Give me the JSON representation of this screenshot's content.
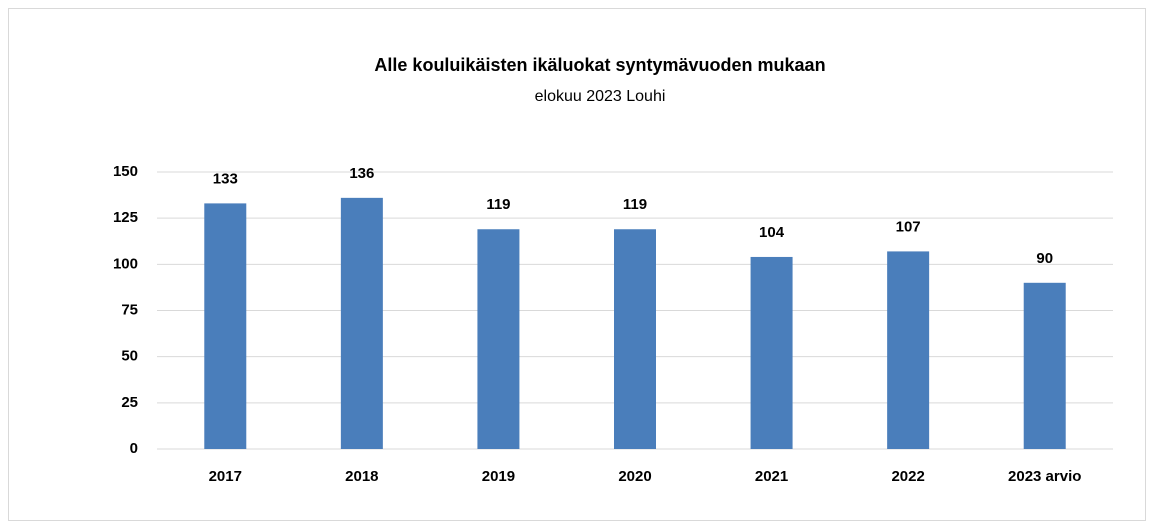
{
  "chart_data": {
    "type": "bar",
    "title": "Alle kouluikäisten ikäluokat syntymävuoden mukaan",
    "subtitle": "elokuu 2023 Louhi",
    "categories": [
      "2017",
      "2018",
      "2019",
      "2020",
      "2021",
      "2022",
      "2023 arvio"
    ],
    "values": [
      133,
      136,
      119,
      119,
      104,
      107,
      90
    ],
    "color": "#4a7ebb",
    "ylim": [
      0,
      150
    ],
    "yticks": [
      0,
      25,
      50,
      75,
      100,
      125,
      150
    ],
    "grid": true
  }
}
